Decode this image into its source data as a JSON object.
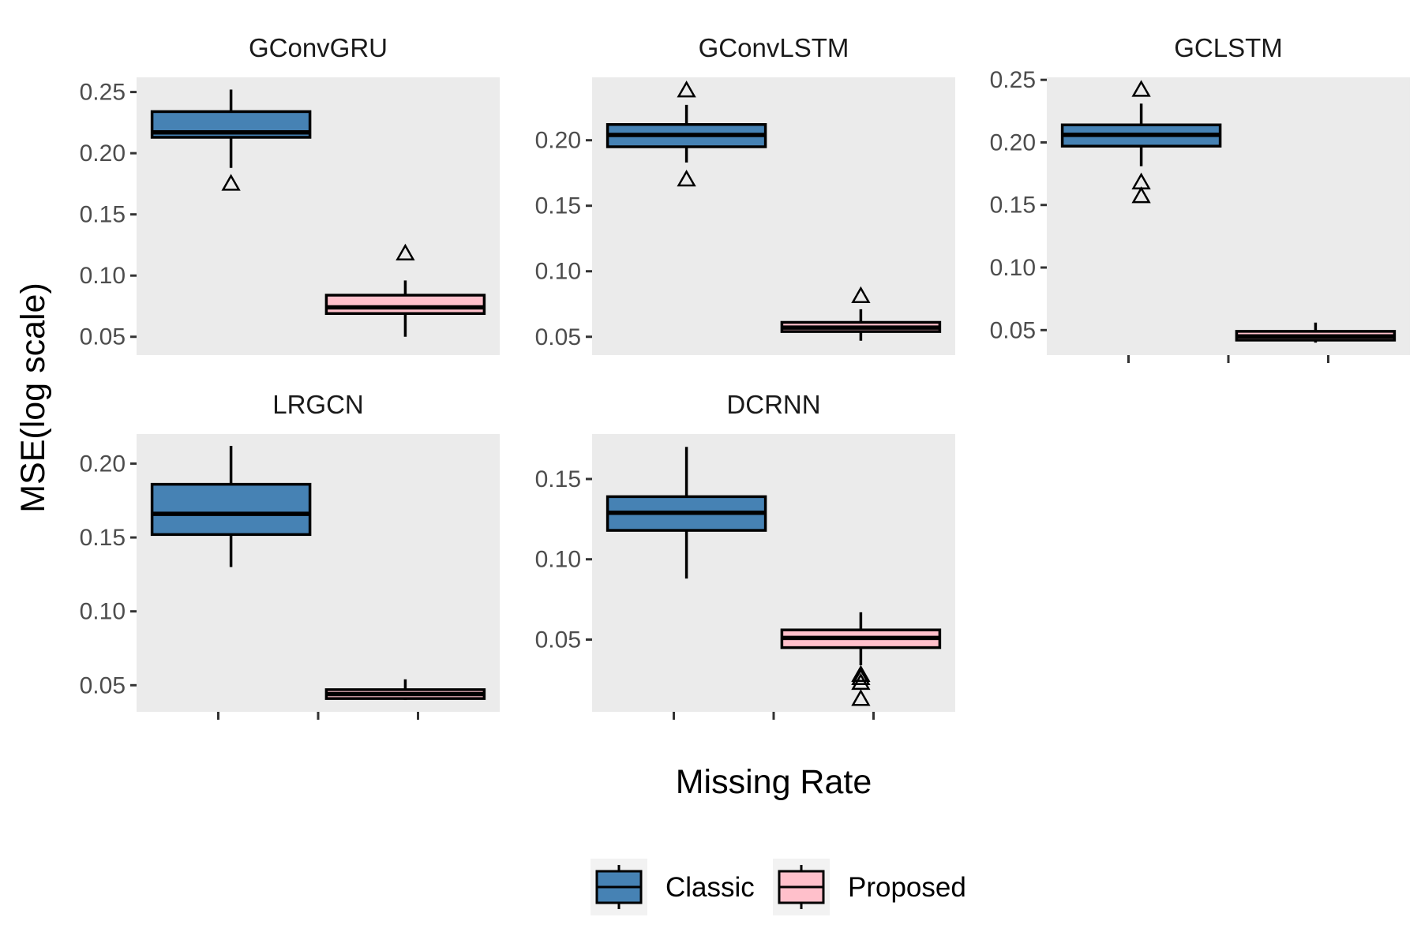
{
  "chart_data": {
    "type": "box",
    "ylabel": "MSE(log scale)",
    "xlabel": "Missing Rate",
    "legend": {
      "position": "bottom",
      "entries": [
        {
          "name": "Classic",
          "color": "#4682B4"
        },
        {
          "name": "Proposed",
          "color": "#FFC0CB"
        }
      ]
    },
    "panel_background": "#EBEBEB",
    "grid": false,
    "panels": [
      {
        "title": "GConvGRU",
        "ylim": [
          0.035,
          0.262
        ],
        "yticks": [
          0.05,
          0.1,
          0.15,
          0.2,
          0.25
        ],
        "ytick_labels": [
          "0.05",
          "0.10",
          "0.15",
          "0.20",
          "0.25"
        ],
        "boxes": [
          {
            "series": "Classic",
            "whisker_low": 0.188,
            "q1": 0.213,
            "median": 0.217,
            "q3": 0.234,
            "whisker_high": 0.252,
            "outliers": [
              0.175
            ]
          },
          {
            "series": "Proposed",
            "whisker_low": 0.05,
            "q1": 0.069,
            "median": 0.074,
            "q3": 0.084,
            "whisker_high": 0.096,
            "outliers": [
              0.118
            ]
          }
        ]
      },
      {
        "title": "GConvLSTM",
        "ylim": [
          0.036,
          0.248
        ],
        "yticks": [
          0.05,
          0.1,
          0.15,
          0.2
        ],
        "ytick_labels": [
          "0.05",
          "0.10",
          "0.15",
          "0.20"
        ],
        "boxes": [
          {
            "series": "Classic",
            "whisker_low": 0.183,
            "q1": 0.195,
            "median": 0.204,
            "q3": 0.212,
            "whisker_high": 0.227,
            "outliers": [
              0.17,
              0.238
            ]
          },
          {
            "series": "Proposed",
            "whisker_low": 0.047,
            "q1": 0.054,
            "median": 0.057,
            "q3": 0.061,
            "whisker_high": 0.071,
            "outliers": [
              0.081
            ]
          }
        ]
      },
      {
        "title": "GCLSTM",
        "ylim": [
          0.03,
          0.252
        ],
        "yticks": [
          0.05,
          0.1,
          0.15,
          0.2,
          0.25
        ],
        "ytick_labels": [
          "0.05",
          "0.10",
          "0.15",
          "0.20",
          "0.25"
        ],
        "boxes": [
          {
            "series": "Classic",
            "whisker_low": 0.181,
            "q1": 0.197,
            "median": 0.206,
            "q3": 0.214,
            "whisker_high": 0.231,
            "outliers": [
              0.157,
              0.168,
              0.242
            ]
          },
          {
            "series": "Proposed",
            "whisker_low": 0.04,
            "q1": 0.042,
            "median": 0.045,
            "q3": 0.049,
            "whisker_high": 0.056,
            "outliers": []
          }
        ]
      },
      {
        "title": "LRGCN",
        "ylim": [
          0.032,
          0.22
        ],
        "yticks": [
          0.05,
          0.1,
          0.15,
          0.2
        ],
        "ytick_labels": [
          "0.05",
          "0.10",
          "0.15",
          "0.20"
        ],
        "boxes": [
          {
            "series": "Classic",
            "whisker_low": 0.13,
            "q1": 0.152,
            "median": 0.166,
            "q3": 0.186,
            "whisker_high": 0.212,
            "outliers": []
          },
          {
            "series": "Proposed",
            "whisker_low": 0.04,
            "q1": 0.041,
            "median": 0.044,
            "q3": 0.047,
            "whisker_high": 0.054,
            "outliers": []
          }
        ]
      },
      {
        "title": "DCRNN",
        "ylim": [
          0.005,
          0.178
        ],
        "yticks": [
          0.05,
          0.1,
          0.15
        ],
        "ytick_labels": [
          "0.05",
          "0.10",
          "0.15"
        ],
        "boxes": [
          {
            "series": "Classic",
            "whisker_low": 0.088,
            "q1": 0.118,
            "median": 0.129,
            "q3": 0.139,
            "whisker_high": 0.17,
            "outliers": []
          },
          {
            "series": "Proposed",
            "whisker_low": 0.034,
            "q1": 0.045,
            "median": 0.051,
            "q3": 0.056,
            "whisker_high": 0.067,
            "outliers": [
              0.013,
              0.023,
              0.026,
              0.028
            ]
          }
        ]
      }
    ]
  }
}
